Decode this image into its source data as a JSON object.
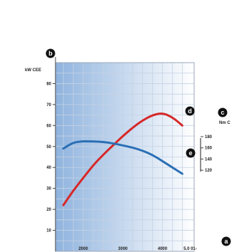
{
  "chart_data": {
    "type": "line",
    "ylabel_left": "kW CEE",
    "ylabel_right": "Nm C",
    "x": [
      1500,
      1750,
      2000,
      2250,
      2500,
      2750,
      3000,
      3250,
      3500,
      3750,
      4000,
      4250,
      4500
    ],
    "x_ticks": [
      "2000",
      "3000",
      "4000",
      "5.0 01-"
    ],
    "y_ticks_left": [
      "10",
      "20",
      "30",
      "40",
      "50",
      "60",
      "70",
      "80"
    ],
    "y_ticks_right": [
      "120",
      "140",
      "160",
      "180"
    ],
    "xlim": [
      1300,
      4800
    ],
    "ylim": [
      0,
      90
    ],
    "series": [
      {
        "color": "#d62828",
        "badge": "d",
        "values": [
          22,
          29,
          35,
          41,
          46,
          50.5,
          55,
          59,
          62.5,
          65,
          66,
          64,
          60
        ]
      },
      {
        "color": "#2a6fb5",
        "badge": "e",
        "values": [
          49,
          52,
          52.5,
          52.4,
          52.2,
          51.5,
          50.5,
          49.5,
          48,
          46,
          43,
          40,
          37
        ]
      }
    ],
    "badges": {
      "y_axis_left": "b",
      "y_axis_right": "c",
      "x_axis": "a"
    },
    "background_gradient": [
      "#8fb3de",
      "#ffffff"
    ],
    "grid": true
  }
}
